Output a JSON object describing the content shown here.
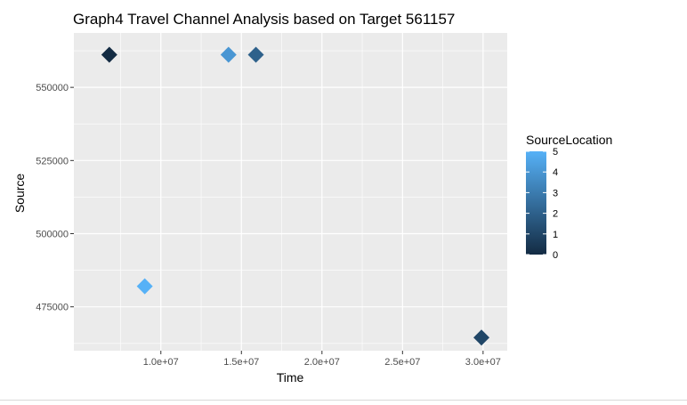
{
  "chart_data": {
    "type": "scatter",
    "title": "Graph4 Travel Channel Analysis based on Target 561157",
    "xlabel": "Time",
    "ylabel": "Source",
    "xlim": [
      4600000,
      31500000
    ],
    "ylim": [
      460000,
      568600
    ],
    "x_ticks": [
      10000000,
      15000000,
      20000000,
      25000000,
      30000000
    ],
    "x_tick_labels": [
      "1.0e+07",
      "1.5e+07",
      "2.0e+07",
      "2.5e+07",
      "3.0e+07"
    ],
    "y_ticks": [
      475000,
      500000,
      525000,
      550000
    ],
    "y_tick_labels": [
      "475000",
      "500000",
      "525000",
      "550000"
    ],
    "grid": true,
    "points": [
      {
        "x": 6800000,
        "y": 561157,
        "color_value": 0
      },
      {
        "x": 9000000,
        "y": 482000,
        "color_value": 5
      },
      {
        "x": 14200000,
        "y": 561157,
        "color_value": 4
      },
      {
        "x": 15900000,
        "y": 561157,
        "color_value": 2
      },
      {
        "x": 29900000,
        "y": 464500,
        "color_value": 1
      }
    ],
    "legend": {
      "title": "SourceLocation",
      "placement": "right",
      "min": 0,
      "max": 5,
      "ticks": [
        0,
        1,
        2,
        3,
        4,
        5
      ],
      "tick_labels": [
        "0",
        "1",
        "2",
        "3",
        "4",
        "5"
      ],
      "low_color": "#132B43",
      "high_color": "#56B1F7"
    },
    "panel_color": "#EBEBEB",
    "grid_color": "#FFFFFF"
  }
}
